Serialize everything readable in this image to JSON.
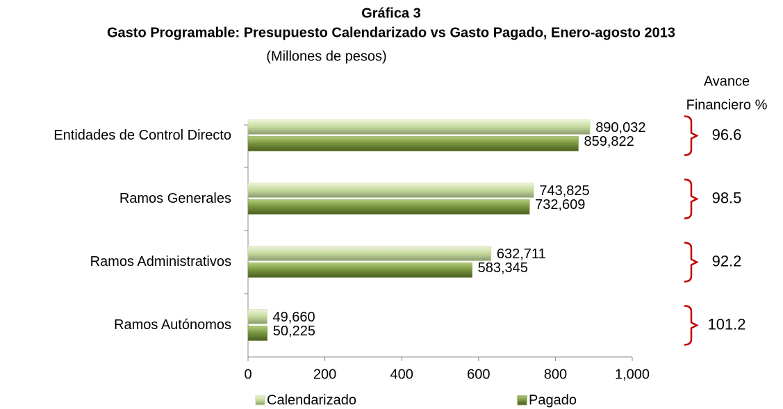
{
  "chart_data": {
    "type": "hbar",
    "title": "Gráfica 3",
    "subtitle": "Gasto Programable: Presupuesto Calendarizado vs Gasto Pagado, Enero-agosto 2013",
    "unit_label": "(Millones de pesos)",
    "categories": [
      "Entidades de Control Directo",
      "Ramos Generales",
      "Ramos Administrativos",
      "Ramos Autónomos"
    ],
    "series": [
      {
        "name": "Calendarizado",
        "color": "#c5d99a",
        "values": [
          890.032,
          743.825,
          632.711,
          49.66
        ],
        "value_labels": [
          "890,032",
          "743,825",
          "632,711",
          "49,660"
        ]
      },
      {
        "name": "Pagado",
        "color": "#77933c",
        "values": [
          859.822,
          732.609,
          583.345,
          50.225
        ],
        "value_labels": [
          "859,822",
          "732,609",
          "583,345",
          "50,225"
        ]
      }
    ],
    "xlim": [
      0,
      1000
    ],
    "xticks": [
      0,
      200,
      400,
      600,
      800,
      {
        "value": 1000,
        "label": "1,000"
      }
    ],
    "avance_title": [
      "Avance",
      "Financiero %"
    ],
    "avance_values": [
      96.6,
      98.5,
      92.2,
      101.2
    ],
    "bracket_color": "#c00000",
    "legend": "bottom"
  }
}
